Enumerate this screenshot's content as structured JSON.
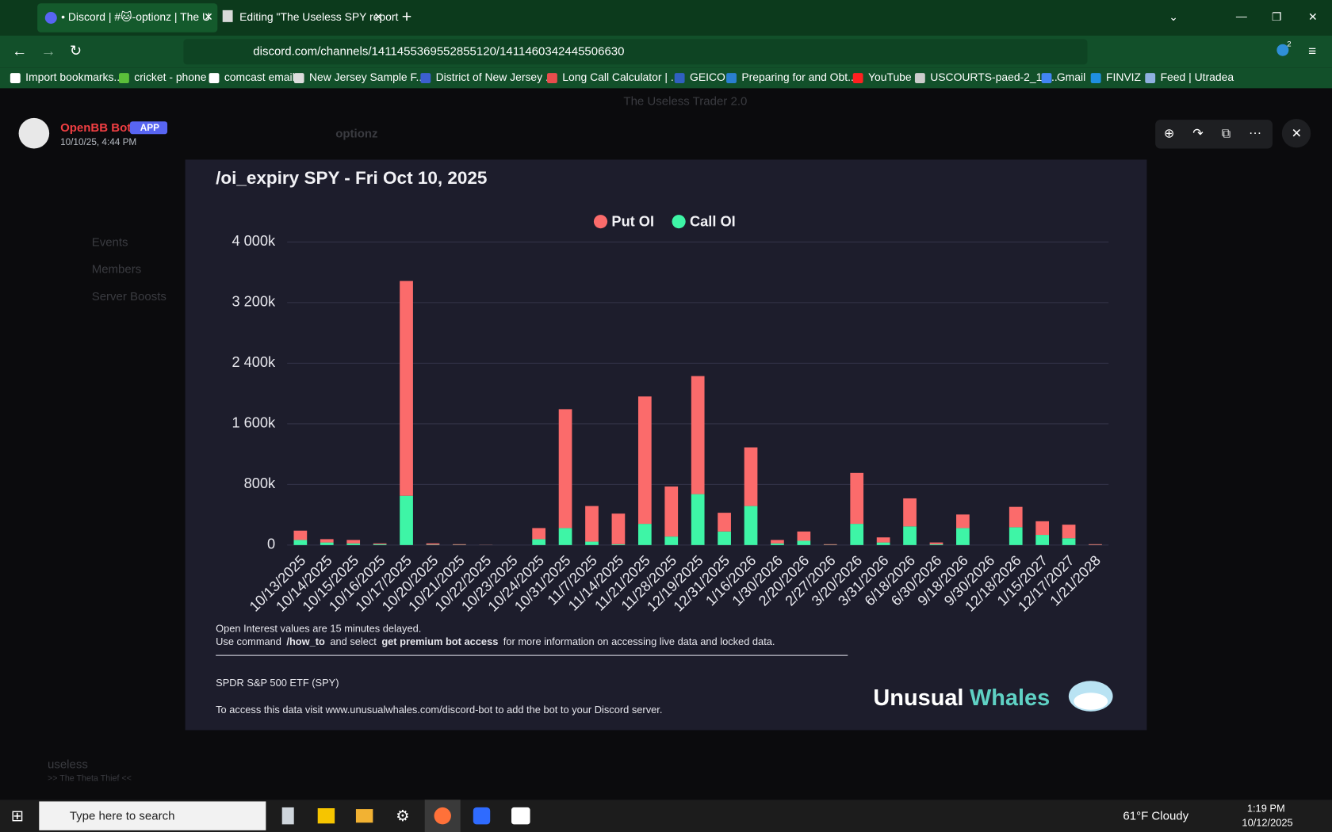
{
  "browser": {
    "tabs": [
      "• Discord | #🐱-optionz | The U",
      "Editing \"The Useless SPY report"
    ],
    "url": "discord.com/channels/1411455369552855120/1411460342445506630",
    "bookmarks": [
      "Import bookmarks...",
      "cricket - phone",
      "comcast email",
      "New Jersey Sample F...",
      "District of New Jersey ...",
      "Long Call Calculator | ...",
      "GEICO",
      "Preparing for and Obt...",
      "YouTube",
      "USCOURTS-paed-2_12...",
      "Gmail",
      "FINVIZ",
      "Feed | Utradea"
    ],
    "extension_badge": "2"
  },
  "discord": {
    "server_name": "The Useless Trader 2.0",
    "channel": "optionz",
    "sidebar": [
      "Events",
      "Members",
      "Server Boosts"
    ],
    "user": "useless",
    "user_status": ">> The Theta Thief <<",
    "message": {
      "author": "OpenBB Bot",
      "badge": "APP",
      "timestamp": "10/10/25, 4:44 PM"
    }
  },
  "chart_data": {
    "type": "stacked_bar",
    "title": "/oi_expiry SPY - Fri Oct 10, 2025",
    "categories": [
      "10/13/2025",
      "10/14/2025",
      "10/15/2025",
      "10/16/2025",
      "10/17/2025",
      "10/20/2025",
      "10/21/2025",
      "10/22/2025",
      "10/23/2025",
      "10/24/2025",
      "10/31/2025",
      "11/7/2025",
      "11/14/2025",
      "11/21/2025",
      "11/28/2025",
      "12/19/2025",
      "12/31/2025",
      "1/16/2026",
      "1/30/2026",
      "2/20/2026",
      "2/27/2026",
      "3/20/2026",
      "3/31/2026",
      "6/18/2026",
      "6/30/2026",
      "9/18/2026",
      "9/30/2026",
      "12/18/2026",
      "1/15/2027",
      "12/17/2027",
      "1/21/2028"
    ],
    "series": [
      {
        "name": "Call OI",
        "color": "#3ef5a6",
        "values": [
          67,
          34,
          22,
          11,
          650,
          5,
          3,
          1,
          0,
          78,
          224,
          45,
          11,
          280,
          112,
          672,
          179,
          515,
          22,
          56,
          3,
          280,
          34,
          246,
          11,
          224,
          0,
          235,
          134,
          90,
          2
        ]
      },
      {
        "name": "Put OI",
        "color": "#fb6b6b",
        "values": [
          123,
          44,
          45,
          11,
          2835,
          17,
          8,
          2,
          0,
          146,
          1569,
          470,
          404,
          1681,
          661,
          1558,
          247,
          774,
          45,
          123,
          8,
          672,
          67,
          370,
          23,
          179,
          0,
          269,
          180,
          179,
          9
        ]
      }
    ],
    "legend_order": [
      1,
      0
    ],
    "ylim": [
      0,
      4000
    ],
    "yticks": [
      0,
      {
        "value": 800,
        "label": "800k"
      },
      {
        "value": 1600,
        "label": "1 600k"
      },
      {
        "value": 2400,
        "label": "2 400k"
      },
      {
        "value": 3200,
        "label": "3 200k"
      },
      {
        "value": 4000,
        "label": "4 000k"
      }
    ],
    "grid": true,
    "legend": "top"
  },
  "footer": {
    "note": "Open Interest values are 15 minutes delayed.",
    "command_parts": [
      "Use command",
      "/how_to",
      "and select",
      "get premium bot access",
      "for more information on accessing live data and locked data."
    ],
    "ticker_name": "SPDR S&P 500 ETF (SPY)",
    "access": "To access this data visit www.unusualwhales.com/discord-bot to add the bot to your Discord server.",
    "logo": [
      "Unusual",
      "Whales"
    ]
  },
  "taskbar": {
    "search": "Type here to search",
    "weather": "61°F Cloudy",
    "time": "1:19 PM",
    "date": "10/12/2025"
  }
}
